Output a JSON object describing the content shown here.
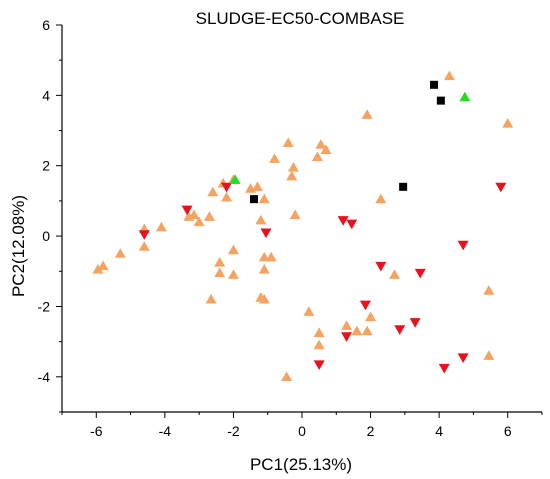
{
  "chart_data": {
    "type": "scatter",
    "title": "SLUDGE-EC50-COMBASE",
    "xlabel": "PC1(25.13%)",
    "ylabel": "PC2(12.08%)",
    "xlim": [
      -7,
      7
    ],
    "ylim": [
      -5,
      6
    ],
    "xticks": [
      -6,
      -4,
      -2,
      0,
      2,
      4,
      6
    ],
    "yticks": [
      -4,
      -2,
      0,
      2,
      4,
      6
    ],
    "grid": false,
    "legend": "none",
    "series": [
      {
        "marker": "triangle-up",
        "color": "#F4A460",
        "points": [
          [
            -5.95,
            -0.95
          ],
          [
            -5.8,
            -0.85
          ],
          [
            -5.3,
            -0.5
          ],
          [
            -4.6,
            0.2
          ],
          [
            -4.6,
            -0.3
          ],
          [
            -4.1,
            0.25
          ],
          [
            -3.3,
            0.55
          ],
          [
            -3.15,
            0.6
          ],
          [
            -3.0,
            0.4
          ],
          [
            -2.7,
            0.55
          ],
          [
            -2.6,
            1.25
          ],
          [
            -2.3,
            1.5
          ],
          [
            -2.2,
            1.1
          ],
          [
            -2.0,
            1.6
          ],
          [
            -1.5,
            1.35
          ],
          [
            -1.3,
            1.4
          ],
          [
            -1.2,
            0.45
          ],
          [
            -1.1,
            1.05
          ],
          [
            -0.8,
            2.2
          ],
          [
            -0.4,
            2.65
          ],
          [
            -0.3,
            1.7
          ],
          [
            -0.25,
            1.95
          ],
          [
            -0.2,
            0.6
          ],
          [
            0.45,
            2.25
          ],
          [
            0.55,
            2.6
          ],
          [
            0.7,
            2.45
          ],
          [
            1.9,
            3.45
          ],
          [
            2.3,
            1.05
          ],
          [
            -2.0,
            -0.4
          ],
          [
            -2.4,
            -0.75
          ],
          [
            -2.4,
            -1.05
          ],
          [
            -2.0,
            -1.1
          ],
          [
            -1.1,
            -0.6
          ],
          [
            -1.1,
            -0.95
          ],
          [
            -0.9,
            -0.6
          ],
          [
            -1.2,
            -1.75
          ],
          [
            -1.1,
            -1.8
          ],
          [
            -2.65,
            -1.8
          ],
          [
            0.2,
            -2.15
          ],
          [
            0.5,
            -2.75
          ],
          [
            0.5,
            -3.1
          ],
          [
            1.3,
            -2.55
          ],
          [
            1.6,
            -2.7
          ],
          [
            1.9,
            -2.7
          ],
          [
            2.0,
            -2.3
          ],
          [
            2.7,
            -1.1
          ],
          [
            -0.45,
            -4.0
          ],
          [
            4.3,
            4.55
          ],
          [
            6.0,
            3.2
          ],
          [
            5.45,
            -1.55
          ],
          [
            5.45,
            -3.4
          ]
        ]
      },
      {
        "marker": "triangle-down",
        "color": "#E8121E",
        "points": [
          [
            -3.35,
            0.75
          ],
          [
            -4.6,
            0.05
          ],
          [
            -2.2,
            1.4
          ],
          [
            -1.05,
            0.1
          ],
          [
            1.2,
            0.45
          ],
          [
            1.45,
            0.35
          ],
          [
            2.3,
            -0.85
          ],
          [
            3.45,
            -1.05
          ],
          [
            4.7,
            -0.25
          ],
          [
            5.8,
            1.4
          ],
          [
            1.85,
            -1.95
          ],
          [
            1.3,
            -2.85
          ],
          [
            2.85,
            -2.65
          ],
          [
            3.3,
            -2.45
          ],
          [
            0.5,
            -3.65
          ],
          [
            4.7,
            -3.45
          ],
          [
            4.15,
            -3.75
          ]
        ]
      },
      {
        "marker": "square",
        "color": "#000000",
        "points": [
          [
            -1.4,
            1.05
          ],
          [
            2.95,
            1.4
          ],
          [
            3.85,
            4.3
          ],
          [
            4.05,
            3.85
          ]
        ]
      },
      {
        "marker": "triangle-up",
        "color": "#22DD22",
        "points": [
          [
            -1.95,
            1.6
          ],
          [
            4.75,
            3.95
          ]
        ]
      }
    ]
  }
}
